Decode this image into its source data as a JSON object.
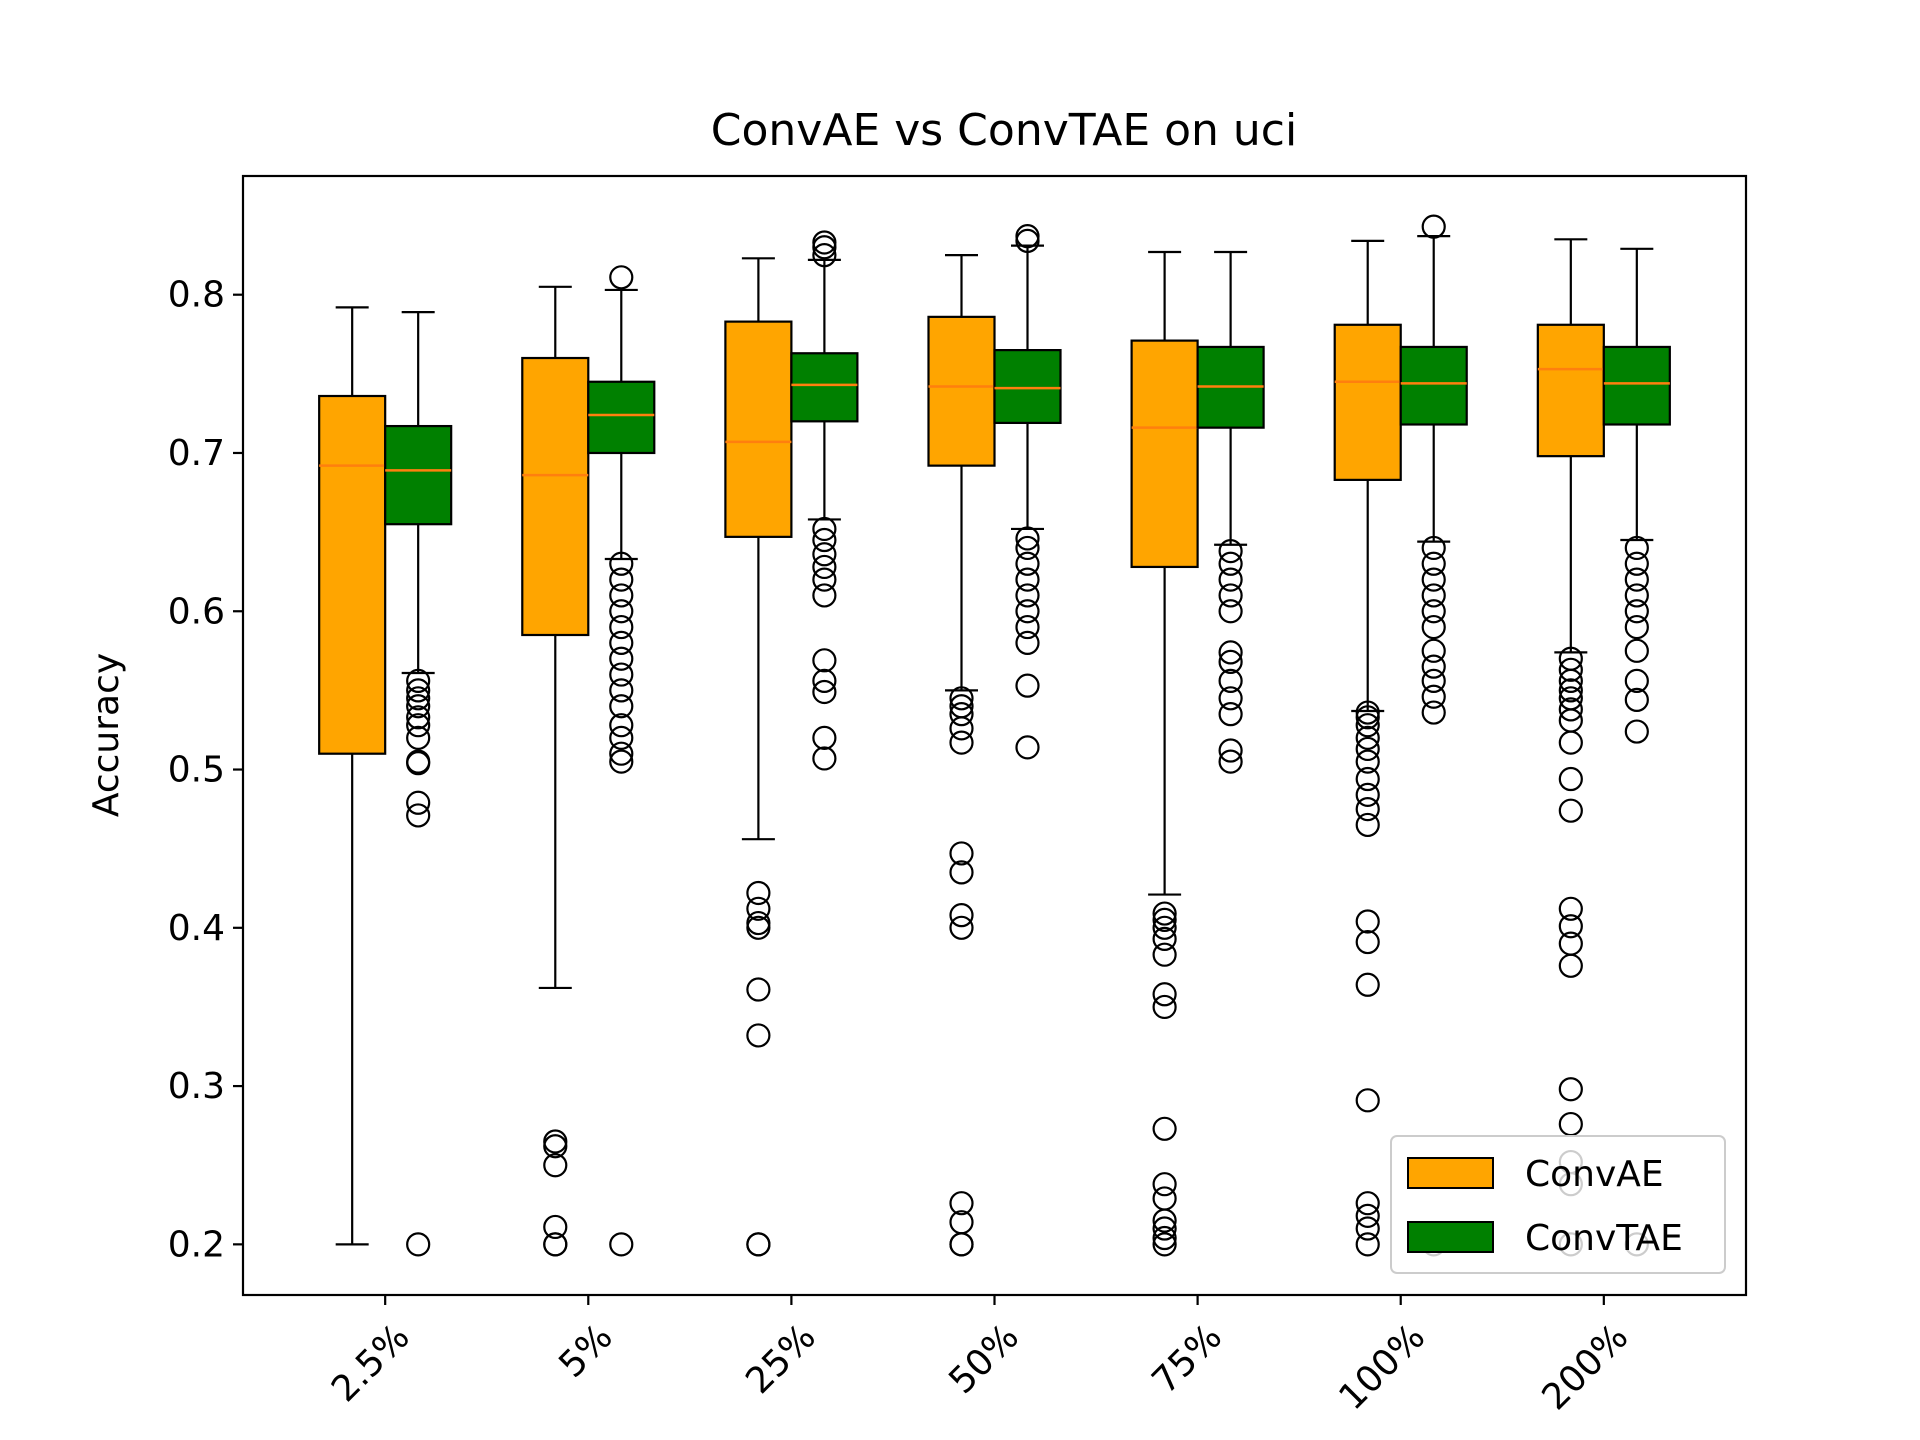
{
  "chart_data": {
    "type": "box",
    "title": "ConvAE vs ConvTAE on uci",
    "xlabel": "",
    "ylabel": "Accuracy",
    "categories": [
      "2.5%",
      "5%",
      "25%",
      "50%",
      "75%",
      "100%",
      "200%"
    ],
    "ylim": [
      0.168,
      0.875
    ],
    "yticks": [
      0.2,
      0.3,
      0.4,
      0.5,
      0.6,
      0.7,
      0.8
    ],
    "ytick_labels": [
      "0.2",
      "0.3",
      "0.4",
      "0.5",
      "0.6",
      "0.7",
      "0.8"
    ],
    "grid": false,
    "legend_position": "lower right",
    "median_color": "#ff7f0e",
    "series": [
      {
        "name": "ConvAE",
        "color": "#ffa500",
        "boxes": [
          {
            "whisker_low": 0.2,
            "q1": 0.51,
            "median": 0.692,
            "q3": 0.736,
            "whisker_high": 0.792,
            "outliers": []
          },
          {
            "whisker_low": 0.362,
            "q1": 0.585,
            "median": 0.686,
            "q3": 0.76,
            "whisker_high": 0.805,
            "outliers": [
              0.2,
              0.2,
              0.211,
              0.25,
              0.262,
              0.265
            ]
          },
          {
            "whisker_low": 0.456,
            "q1": 0.647,
            "median": 0.707,
            "q3": 0.783,
            "whisker_high": 0.823,
            "outliers": [
              0.2,
              0.2,
              0.332,
              0.361,
              0.4,
              0.403,
              0.412,
              0.422
            ]
          },
          {
            "whisker_low": 0.55,
            "q1": 0.692,
            "median": 0.742,
            "q3": 0.786,
            "whisker_high": 0.825,
            "outliers": [
              0.2,
              0.2,
              0.214,
              0.226,
              0.4,
              0.408,
              0.435,
              0.447,
              0.517,
              0.526,
              0.535,
              0.54,
              0.545
            ]
          },
          {
            "whisker_low": 0.421,
            "q1": 0.628,
            "median": 0.716,
            "q3": 0.771,
            "whisker_high": 0.827,
            "outliers": [
              0.2,
              0.204,
              0.21,
              0.215,
              0.229,
              0.238,
              0.273,
              0.35,
              0.358,
              0.383,
              0.393,
              0.4,
              0.405,
              0.409
            ]
          },
          {
            "whisker_low": 0.537,
            "q1": 0.683,
            "median": 0.745,
            "q3": 0.781,
            "whisker_high": 0.834,
            "outliers": [
              0.2,
              0.21,
              0.218,
              0.226,
              0.291,
              0.364,
              0.391,
              0.404,
              0.465,
              0.475,
              0.484,
              0.494,
              0.505,
              0.513,
              0.52,
              0.528,
              0.533,
              0.536
            ]
          },
          {
            "whisker_low": 0.574,
            "q1": 0.698,
            "median": 0.753,
            "q3": 0.781,
            "whisker_high": 0.835,
            "outliers": [
              0.2,
              0.238,
              0.252,
              0.276,
              0.298,
              0.376,
              0.39,
              0.401,
              0.412,
              0.474,
              0.494,
              0.517,
              0.531,
              0.538,
              0.545,
              0.55,
              0.556,
              0.563,
              0.57
            ]
          }
        ]
      },
      {
        "name": "ConvTAE",
        "color": "#008000",
        "boxes": [
          {
            "whisker_low": 0.561,
            "q1": 0.655,
            "median": 0.689,
            "q3": 0.717,
            "whisker_high": 0.789,
            "outliers": [
              0.2,
              0.471,
              0.479,
              0.504,
              0.505,
              0.52,
              0.528,
              0.533,
              0.54,
              0.545,
              0.55,
              0.556
            ]
          },
          {
            "whisker_low": 0.633,
            "q1": 0.7,
            "median": 0.724,
            "q3": 0.745,
            "whisker_high": 0.803,
            "outliers": [
              0.2,
              0.505,
              0.51,
              0.52,
              0.528,
              0.54,
              0.55,
              0.56,
              0.57,
              0.58,
              0.59,
              0.6,
              0.61,
              0.62,
              0.63,
              0.811
            ]
          },
          {
            "whisker_low": 0.658,
            "q1": 0.72,
            "median": 0.743,
            "q3": 0.763,
            "whisker_high": 0.822,
            "outliers": [
              0.507,
              0.52,
              0.549,
              0.556,
              0.569,
              0.61,
              0.62,
              0.628,
              0.636,
              0.645,
              0.652,
              0.825,
              0.83,
              0.833
            ]
          },
          {
            "whisker_low": 0.652,
            "q1": 0.719,
            "median": 0.741,
            "q3": 0.765,
            "whisker_high": 0.831,
            "outliers": [
              0.514,
              0.553,
              0.58,
              0.59,
              0.6,
              0.61,
              0.62,
              0.63,
              0.64,
              0.646,
              0.834,
              0.837
            ]
          },
          {
            "whisker_low": 0.642,
            "q1": 0.716,
            "median": 0.742,
            "q3": 0.767,
            "whisker_high": 0.827,
            "outliers": [
              0.505,
              0.512,
              0.535,
              0.545,
              0.556,
              0.568,
              0.574,
              0.6,
              0.61,
              0.62,
              0.63,
              0.638
            ]
          },
          {
            "whisker_low": 0.644,
            "q1": 0.718,
            "median": 0.744,
            "q3": 0.767,
            "whisker_high": 0.837,
            "outliers": [
              0.2,
              0.536,
              0.546,
              0.556,
              0.565,
              0.575,
              0.59,
              0.6,
              0.61,
              0.62,
              0.63,
              0.64,
              0.843
            ]
          },
          {
            "whisker_low": 0.645,
            "q1": 0.718,
            "median": 0.744,
            "q3": 0.767,
            "whisker_high": 0.829,
            "outliers": [
              0.2,
              0.524,
              0.544,
              0.556,
              0.575,
              0.59,
              0.6,
              0.61,
              0.62,
              0.63,
              0.64
            ]
          }
        ]
      }
    ]
  }
}
